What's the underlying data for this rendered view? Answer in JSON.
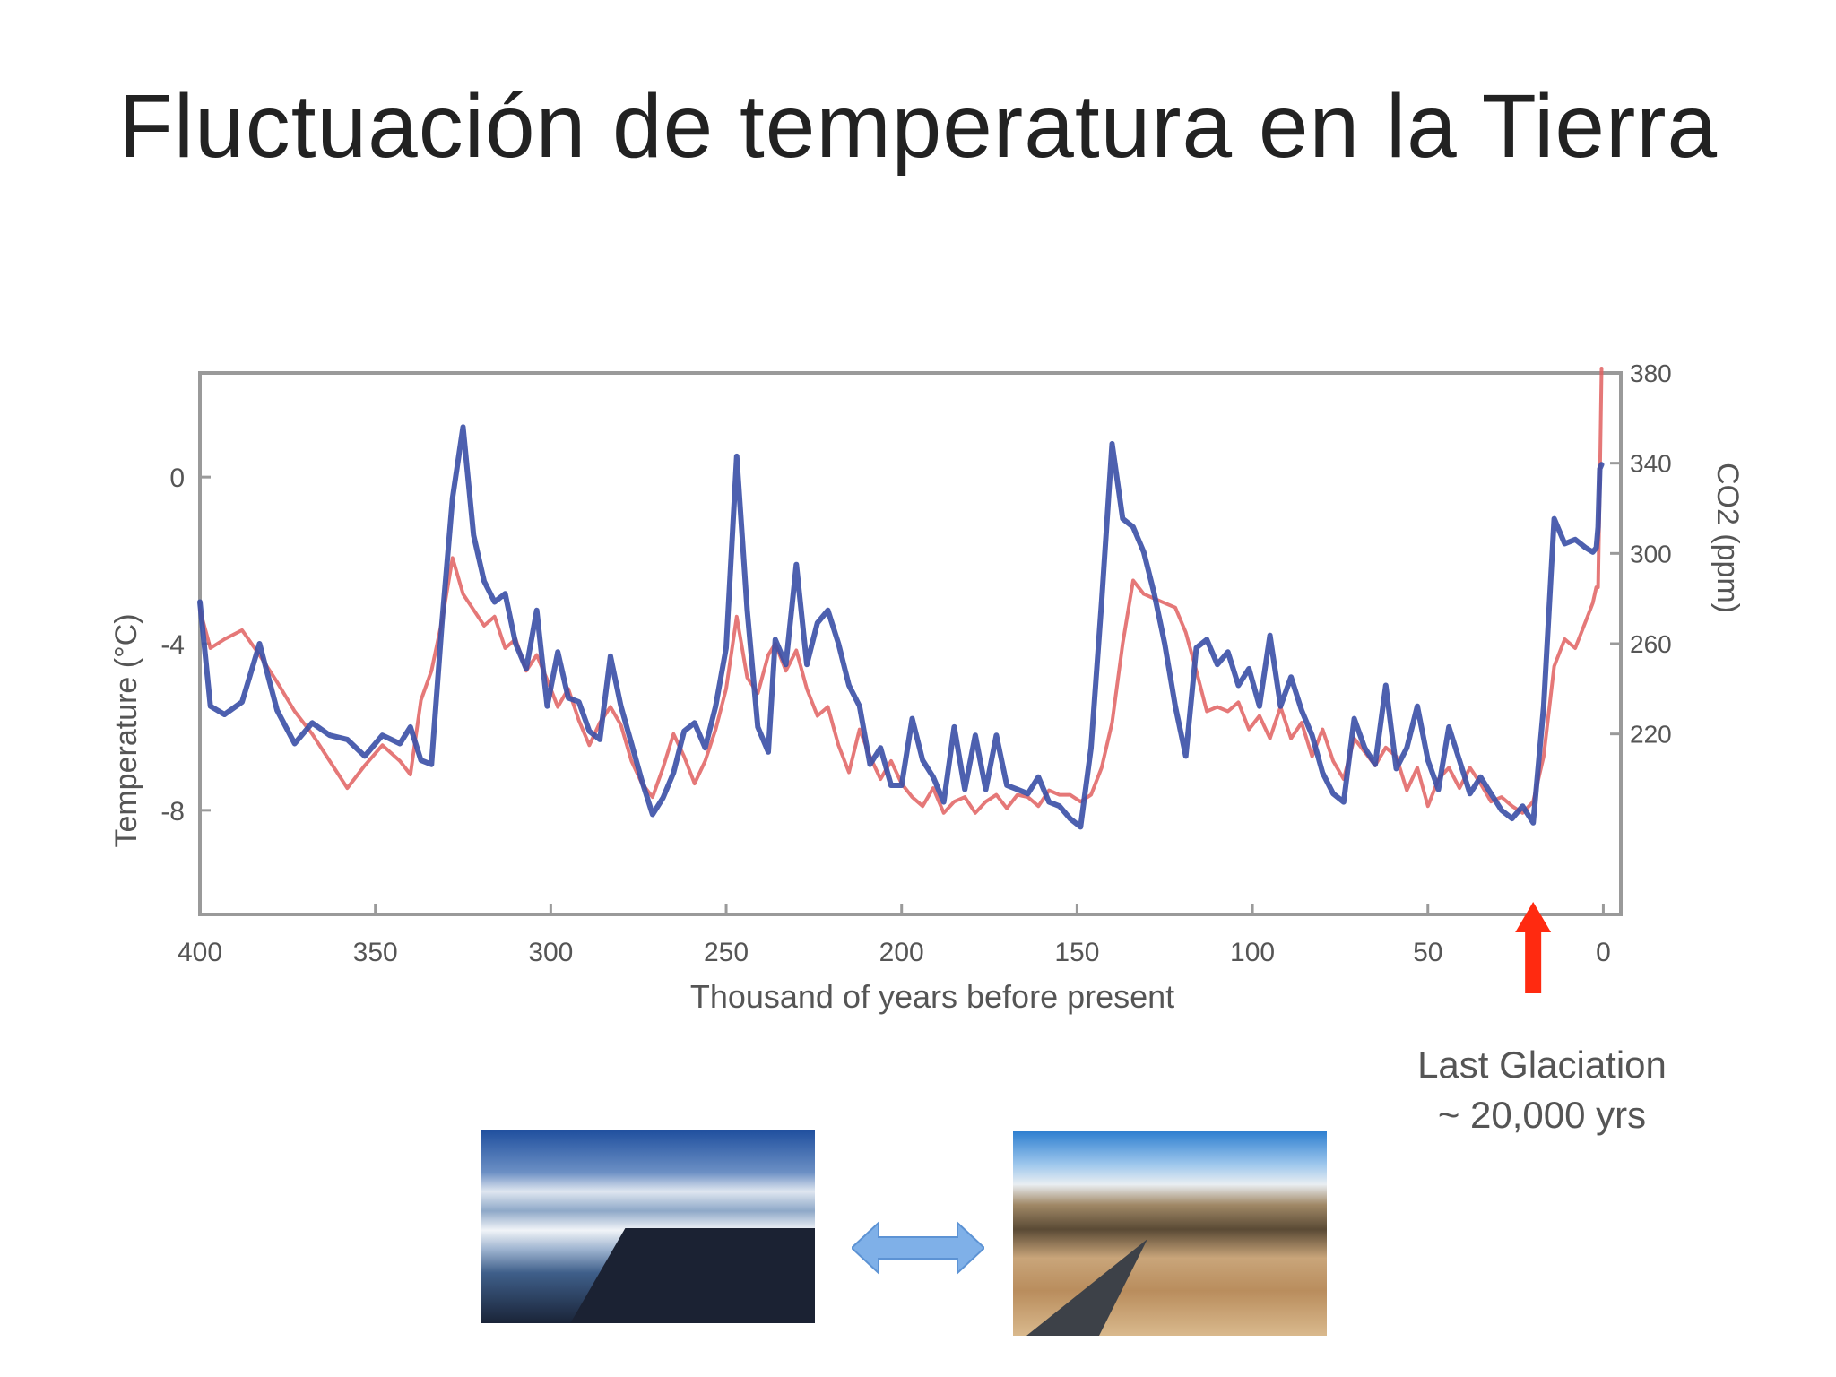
{
  "slide": {
    "title": "Fluctuación de temperatura en la Tierra"
  },
  "annotation": {
    "line1": "Last Glaciation",
    "line2": "~ 20,000 yrs"
  },
  "images": {
    "left": "glacier-photo",
    "right": "desert-photo"
  },
  "colors": {
    "co2": "#e06060",
    "temperature": "#3a4fa6",
    "arrow_red": "#ff2a10",
    "arrow_blue": "#7fb0e8"
  },
  "chart_data": {
    "type": "line",
    "xlabel": "Thousand of years before present",
    "ylabel_left": "Temperature (°C)",
    "ylabel_right": "CO2 (ppm)",
    "x_ticks": [
      400,
      350,
      300,
      250,
      200,
      150,
      100,
      50,
      0
    ],
    "x_tick_labels": [
      "400",
      "350",
      "300",
      "250",
      "200",
      "150",
      "100",
      "50",
      "0"
    ],
    "xlim": [
      400,
      -5
    ],
    "y_left_ticks": [
      0,
      -4,
      -8
    ],
    "y_left_tick_labels": [
      "0",
      "-4",
      "-8"
    ],
    "y_left_lim": [
      -10.5,
      2.5
    ],
    "y_right_ticks": [
      380,
      340,
      300,
      260,
      220
    ],
    "y_right_tick_labels": [
      "380",
      "340",
      "300",
      "260",
      "220"
    ],
    "y_right_lim": [
      140,
      380
    ],
    "series": [
      {
        "key": "co2",
        "axis": "right",
        "x": [
          400,
          397,
          393,
          388,
          383,
          378,
          373,
          368,
          363,
          358,
          353,
          348,
          343,
          340,
          337,
          334,
          331,
          328,
          325,
          322,
          319,
          316,
          313,
          310,
          307,
          304,
          301,
          298,
          295,
          292,
          289,
          286,
          283,
          280,
          277,
          274,
          271,
          268,
          265,
          262,
          259,
          256,
          253,
          250,
          247,
          244,
          241,
          238,
          236,
          233,
          230,
          227,
          224,
          221,
          218,
          215,
          212,
          209,
          206,
          203,
          200,
          197,
          194,
          191,
          188,
          185,
          182,
          179,
          176,
          173,
          170,
          167,
          164,
          161,
          158,
          155,
          152,
          149,
          146,
          143,
          140,
          137,
          134,
          131,
          128,
          125,
          122,
          119,
          116,
          113,
          110,
          107,
          104,
          101,
          98,
          95,
          92,
          89,
          86,
          83,
          80,
          77,
          74,
          71,
          68,
          65,
          62,
          59,
          56,
          53,
          50,
          47,
          44,
          41,
          38,
          35,
          32,
          29,
          26,
          23,
          20,
          17,
          14,
          11,
          8,
          5,
          3,
          2,
          1.5,
          1,
          0.5
        ],
        "y": [
          275,
          258,
          262,
          266,
          255,
          243,
          230,
          220,
          208,
          196,
          206,
          215,
          208,
          202,
          235,
          248,
          270,
          298,
          282,
          275,
          268,
          272,
          258,
          262,
          248,
          255,
          244,
          232,
          240,
          226,
          215,
          225,
          232,
          224,
          208,
          198,
          192,
          205,
          220,
          210,
          198,
          208,
          222,
          240,
          272,
          245,
          238,
          255,
          260,
          248,
          257,
          240,
          228,
          232,
          215,
          203,
          222,
          210,
          200,
          208,
          198,
          192,
          188,
          196,
          185,
          190,
          192,
          185,
          190,
          193,
          187,
          193,
          192,
          188,
          195,
          193,
          193,
          190,
          193,
          205,
          225,
          260,
          288,
          282,
          280,
          278,
          276,
          265,
          248,
          230,
          232,
          230,
          234,
          222,
          228,
          218,
          232,
          218,
          225,
          210,
          222,
          208,
          200,
          218,
          212,
          206,
          214,
          210,
          195,
          205,
          188,
          200,
          205,
          196,
          205,
          198,
          190,
          192,
          188,
          185,
          190,
          210,
          250,
          262,
          258,
          270,
          278,
          285,
          285,
          330,
          382
        ]
      },
      {
        "key": "temperature",
        "axis": "left",
        "x": [
          400,
          397,
          393,
          388,
          383,
          378,
          373,
          368,
          363,
          358,
          353,
          348,
          343,
          340,
          337,
          334,
          331,
          328,
          325,
          322,
          319,
          316,
          313,
          310,
          307,
          304,
          301,
          298,
          295,
          292,
          289,
          286,
          283,
          280,
          277,
          274,
          271,
          268,
          265,
          262,
          259,
          256,
          253,
          250,
          247,
          244,
          241,
          238,
          236,
          233,
          230,
          227,
          224,
          221,
          218,
          215,
          212,
          209,
          206,
          203,
          200,
          197,
          194,
          191,
          188,
          185,
          182,
          179,
          176,
          173,
          170,
          167,
          164,
          161,
          158,
          155,
          152,
          149,
          146,
          143,
          140,
          137,
          134,
          131,
          128,
          125,
          122,
          119,
          116,
          113,
          110,
          107,
          104,
          101,
          98,
          95,
          92,
          89,
          86,
          83,
          80,
          77,
          74,
          71,
          68,
          65,
          62,
          59,
          56,
          53,
          50,
          47,
          44,
          41,
          38,
          35,
          32,
          29,
          26,
          23,
          20,
          17,
          14,
          11,
          8,
          5,
          3,
          2,
          1.5,
          1,
          0.5
        ],
        "y": [
          -3.0,
          -5.5,
          -5.7,
          -5.4,
          -4.0,
          -5.6,
          -6.4,
          -5.9,
          -6.2,
          -6.3,
          -6.7,
          -6.2,
          -6.4,
          -6.0,
          -6.8,
          -6.9,
          -3.5,
          -0.5,
          1.2,
          -1.4,
          -2.5,
          -3.0,
          -2.8,
          -4.0,
          -4.6,
          -3.2,
          -5.5,
          -4.2,
          -5.3,
          -5.4,
          -6.1,
          -6.3,
          -4.3,
          -5.5,
          -6.4,
          -7.3,
          -8.1,
          -7.7,
          -7.1,
          -6.1,
          -5.9,
          -6.5,
          -5.5,
          -4.1,
          0.5,
          -3.2,
          -6.0,
          -6.6,
          -3.9,
          -4.5,
          -2.1,
          -4.5,
          -3.5,
          -3.2,
          -4.0,
          -5.0,
          -5.5,
          -6.9,
          -6.5,
          -7.4,
          -7.4,
          -5.8,
          -6.8,
          -7.2,
          -7.8,
          -6.0,
          -7.5,
          -6.2,
          -7.5,
          -6.2,
          -7.4,
          -7.5,
          -7.6,
          -7.2,
          -7.8,
          -7.9,
          -8.2,
          -8.4,
          -6.5,
          -3.0,
          0.8,
          -1.0,
          -1.2,
          -1.8,
          -2.8,
          -4.0,
          -5.5,
          -6.7,
          -4.1,
          -3.9,
          -4.5,
          -4.2,
          -5.0,
          -4.6,
          -5.5,
          -3.8,
          -5.5,
          -4.8,
          -5.6,
          -6.2,
          -7.1,
          -7.6,
          -7.8,
          -5.8,
          -6.5,
          -6.9,
          -5.0,
          -7.0,
          -6.5,
          -5.5,
          -6.8,
          -7.5,
          -6.0,
          -6.8,
          -7.6,
          -7.2,
          -7.6,
          -8.0,
          -8.2,
          -7.9,
          -8.3,
          -5.5,
          -1.0,
          -1.6,
          -1.5,
          -1.7,
          -1.8,
          -1.7,
          -1.2,
          0.2,
          0.3
        ]
      }
    ]
  }
}
